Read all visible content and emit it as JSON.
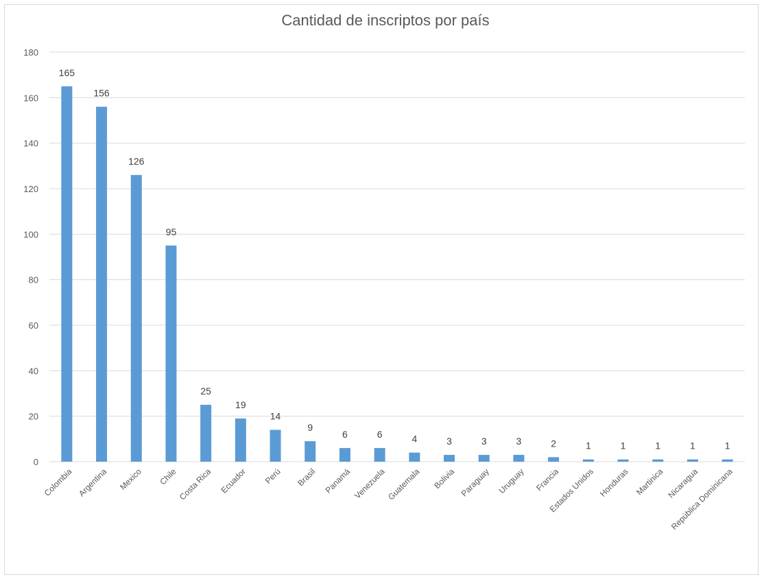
{
  "chart_data": {
    "type": "bar",
    "title": "Cantidad de inscriptos por país",
    "xlabel": "",
    "ylabel": "",
    "ylim": [
      0,
      180
    ],
    "yticks": [
      0,
      20,
      40,
      60,
      80,
      100,
      120,
      140,
      160,
      180
    ],
    "grid": true,
    "legend": "none",
    "bar_color": "#5b9bd5",
    "categories": [
      "Colombia",
      "Argentina",
      "Mexico",
      "Chile",
      "Costa Rica",
      "Ecuador",
      "Perú",
      "Brasil",
      "Panamá",
      "Venezuela",
      "Guatemala",
      "Bolivia",
      "Paraguay",
      "Uruguay",
      "Francia",
      "Estados Unidos",
      "Honduras",
      "Martinica",
      "Nicaragua",
      "República Dominicana"
    ],
    "values": [
      165,
      156,
      126,
      95,
      25,
      19,
      14,
      9,
      6,
      6,
      4,
      3,
      3,
      3,
      2,
      1,
      1,
      1,
      1,
      1
    ],
    "value_labels": [
      "165",
      "156",
      "126",
      "95",
      "25",
      "19",
      "14",
      "9",
      "6",
      "6",
      "4",
      "3",
      "3",
      "3",
      "2",
      "1",
      "1",
      "1",
      "1",
      "1"
    ]
  }
}
